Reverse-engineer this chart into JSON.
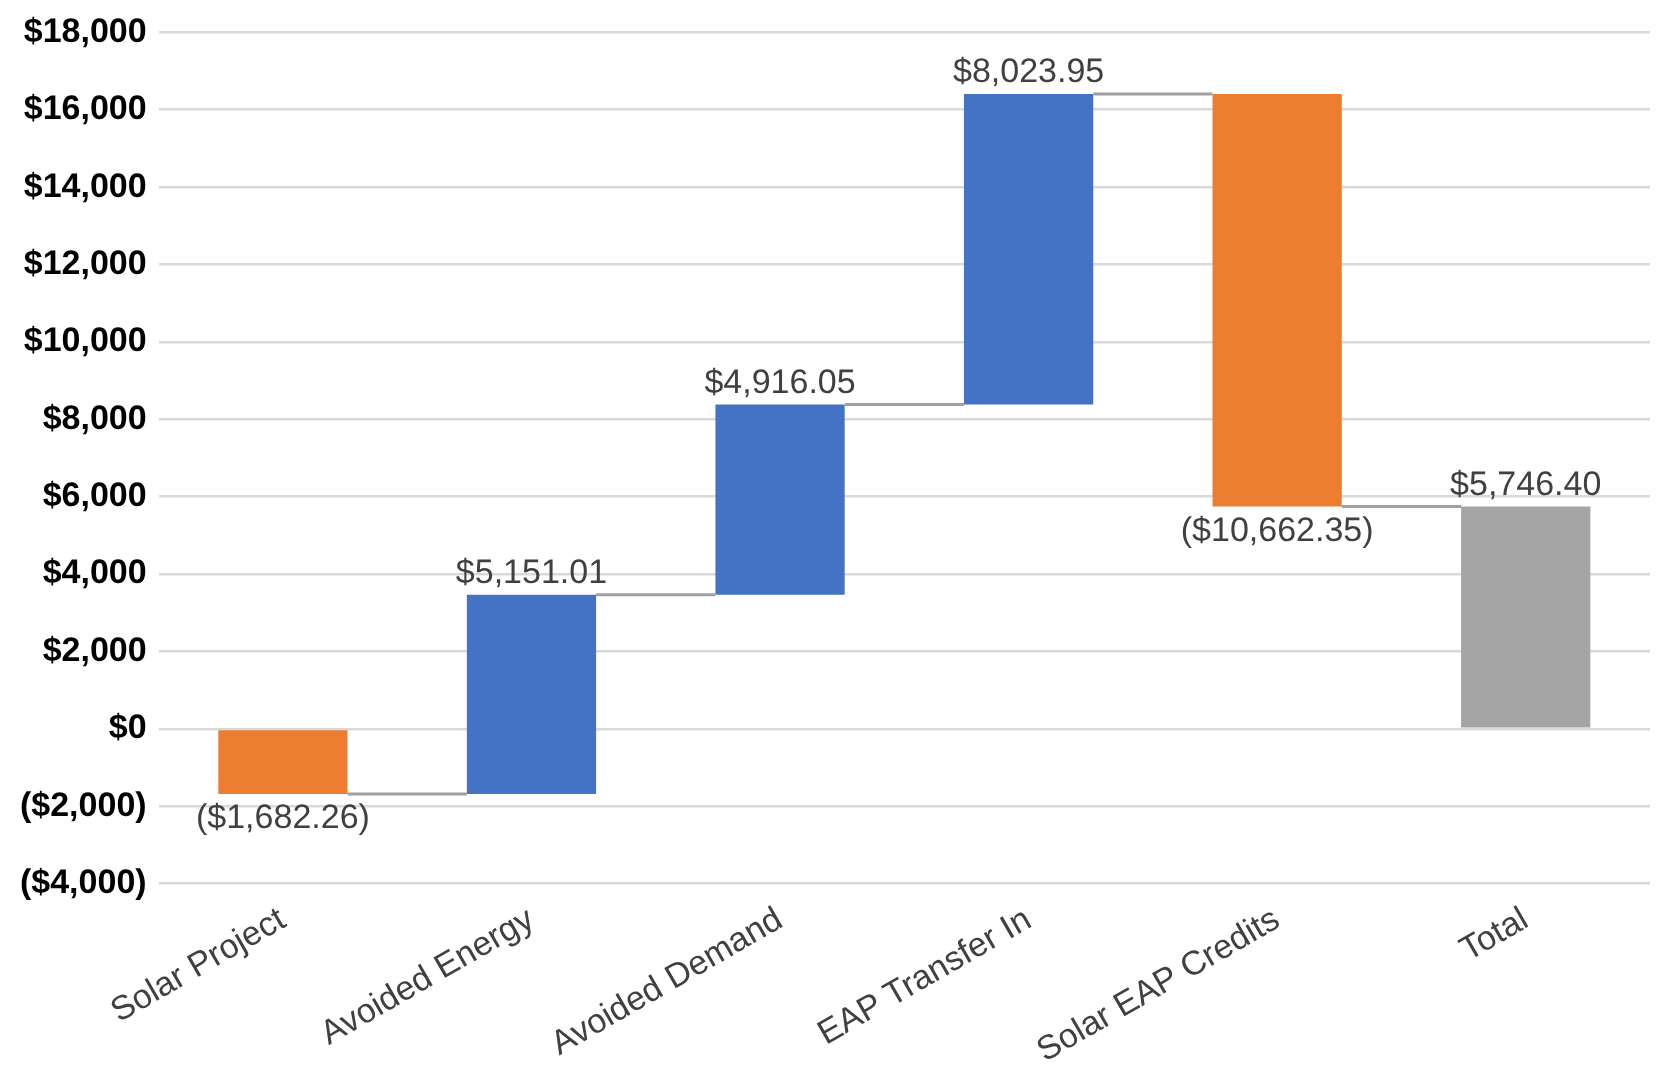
{
  "chart_data": {
    "type": "bar",
    "categories": [
      "Solar Project",
      "Avoided Energy",
      "Avoided Demand",
      "EAP Transfer In",
      "Solar EAP Credits",
      "Total"
    ],
    "values": [
      -1682.26,
      5151.01,
      4916.05,
      8023.95,
      -10662.35,
      5746.4
    ],
    "base": [
      0,
      -1682.26,
      3468.75,
      8384.8,
      16408.75,
      0
    ],
    "colors": [
      "#ed7d31",
      "#4472c4",
      "#4472c4",
      "#4472c4",
      "#ed7d31",
      "#a5a5a5"
    ],
    "value_labels": [
      "($1,682.26)",
      "$5,151.01",
      "$4,916.05",
      "$8,023.95",
      "($10,662.35)",
      "$5,746.40"
    ],
    "ylim": [
      -4000,
      18000
    ],
    "yticks": [
      {
        "value": -4000,
        "label": "($4,000)"
      },
      {
        "value": -2000,
        "label": "($2,000)"
      },
      {
        "value": 0,
        "label": "$0"
      },
      {
        "value": 2000,
        "label": "$2,000"
      },
      {
        "value": 4000,
        "label": "$4,000"
      },
      {
        "value": 6000,
        "label": "$6,000"
      },
      {
        "value": 8000,
        "label": "$8,000"
      },
      {
        "value": 10000,
        "label": "$10,000"
      },
      {
        "value": 12000,
        "label": "$12,000"
      },
      {
        "value": 14000,
        "label": "$14,000"
      },
      {
        "value": 16000,
        "label": "$16,000"
      },
      {
        "value": 18000,
        "label": "$18,000"
      }
    ],
    "grid": "y",
    "legend": false
  }
}
